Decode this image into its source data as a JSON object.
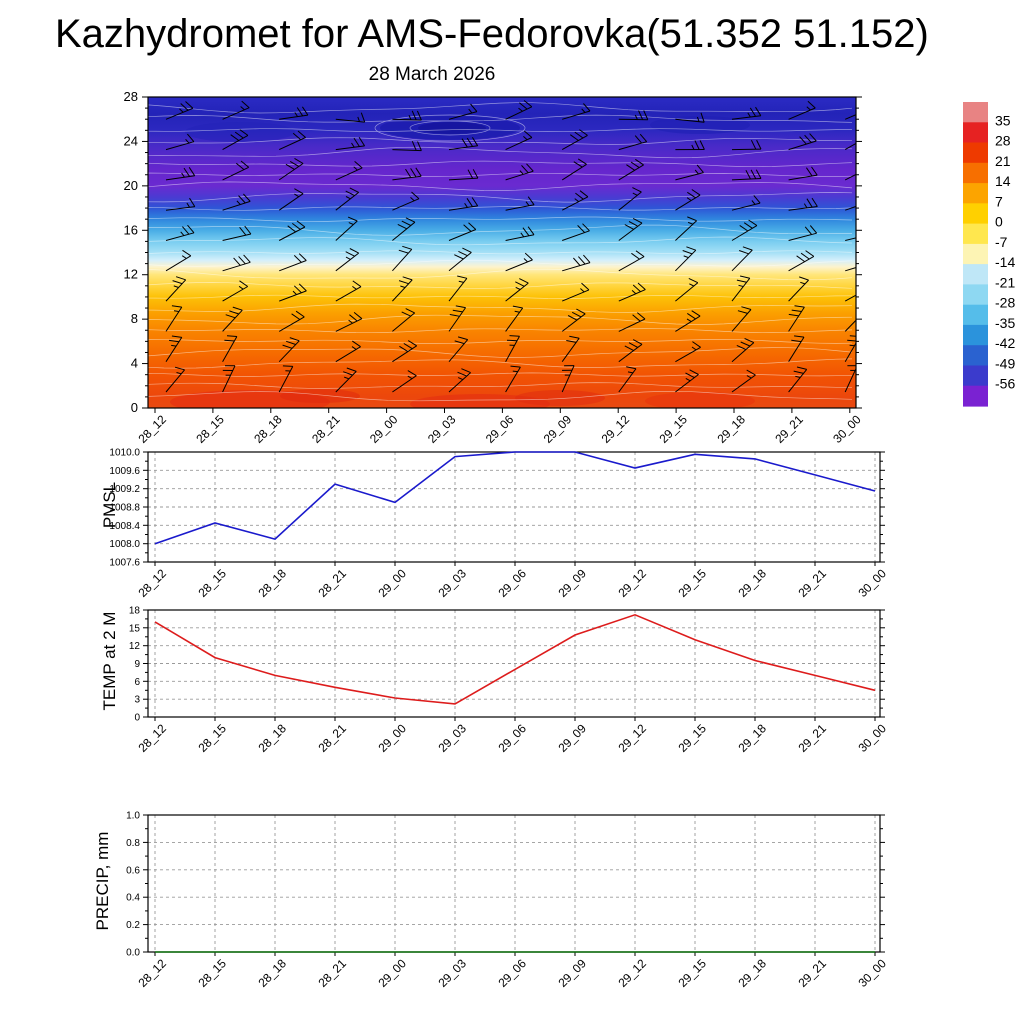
{
  "page": {
    "title": "Kazhydromet for AMS-Fedorovka(51.352 51.152)",
    "subtitle": "28 March 2026"
  },
  "time_labels": [
    "28_12",
    "28_15",
    "28_18",
    "28_21",
    "29_00",
    "29_03",
    "29_06",
    "29_09",
    "29_12",
    "29_15",
    "29_18",
    "29_21",
    "30_00"
  ],
  "chart_data": [
    {
      "id": "upper-air",
      "type": "heatmap",
      "title": "28 March 2026",
      "description": "time-height temperature cross-section with wind barbs",
      "xlabel": "",
      "ylabel": "",
      "ylim": [
        0,
        28
      ],
      "y_ticks": [
        0,
        4,
        8,
        12,
        16,
        20,
        24,
        28
      ],
      "overlay": "wind-barbs",
      "colorbar_ticks": [
        "35",
        "28",
        "21",
        "14",
        "7",
        "0",
        "-7",
        "-14",
        "-21",
        "-28",
        "-35",
        "-42",
        "-49",
        "-56"
      ],
      "colorbar_colors": [
        "#e88383",
        "#e62222",
        "#ee3a00",
        "#f76f00",
        "#fca400",
        "#ffd000",
        "#ffe74e",
        "#fdf4b4",
        "#bfe7f7",
        "#8ed8f2",
        "#55bdea",
        "#2b93dc",
        "#2a62d0",
        "#3b3bcc",
        "#7a22d2"
      ],
      "gradient_stops": [
        {
          "level": 28,
          "color": "#2b2bc4"
        },
        {
          "level": 26.5,
          "color": "#2323b8"
        },
        {
          "level": 25,
          "color": "#2c28c0"
        },
        {
          "level": 23.5,
          "color": "#4a2ac8"
        },
        {
          "level": 21.5,
          "color": "#6526cd"
        },
        {
          "level": 20,
          "color": "#6a2ad0"
        },
        {
          "level": 19,
          "color": "#4b3ad2"
        },
        {
          "level": 18,
          "color": "#2e55d6"
        },
        {
          "level": 17,
          "color": "#2f86de"
        },
        {
          "level": 16,
          "color": "#49ade6"
        },
        {
          "level": 15,
          "color": "#79cdf0"
        },
        {
          "level": 14,
          "color": "#a5e0f6"
        },
        {
          "level": 13.3,
          "color": "#d5effb"
        },
        {
          "level": 12.7,
          "color": "#fdf3cd"
        },
        {
          "level": 12,
          "color": "#ffe67a"
        },
        {
          "level": 11,
          "color": "#ffd53e"
        },
        {
          "level": 10,
          "color": "#fdc107"
        },
        {
          "level": 8.5,
          "color": "#fb9f00"
        },
        {
          "level": 7,
          "color": "#f98500"
        },
        {
          "level": 5,
          "color": "#f66c00"
        },
        {
          "level": 3,
          "color": "#f25403"
        },
        {
          "level": 1,
          "color": "#ec470c"
        },
        {
          "level": 0,
          "color": "#e84a12"
        }
      ]
    },
    {
      "id": "pmsl",
      "type": "line",
      "label": "PMSL",
      "color": "#1a1acc",
      "ylim": [
        1007.6,
        1010.0
      ],
      "y_ticks": [
        1007.6,
        1008.0,
        1008.4,
        1008.8,
        1009.2,
        1009.6,
        1010.0
      ],
      "y_tick_labels": [
        "1007.6",
        "1008.0",
        "1008.4",
        "1008.8",
        "1009.2",
        "1009.6",
        "1010.0"
      ],
      "values": [
        1008.0,
        1008.45,
        1008.1,
        1009.3,
        1008.9,
        1009.9,
        1010.0,
        1010.0,
        1009.65,
        1009.95,
        1009.85,
        1009.5,
        1009.15
      ]
    },
    {
      "id": "temp2m",
      "type": "line",
      "label": "TEMP at 2 M",
      "color": "#dd1c1c",
      "ylim": [
        0,
        18
      ],
      "y_ticks": [
        0,
        3,
        6,
        9,
        12,
        15,
        18
      ],
      "y_tick_labels": [
        "0",
        "3",
        "6",
        "9",
        "12",
        "15",
        "18"
      ],
      "values": [
        16,
        10,
        7,
        5,
        3.2,
        2.2,
        8,
        13.8,
        17.2,
        13,
        9.5,
        7,
        4.5
      ]
    },
    {
      "id": "precip",
      "type": "line",
      "label": "PRECIP, mm",
      "color": "#0b6e0b",
      "ylim": [
        0.0,
        1.0
      ],
      "y_ticks": [
        0.0,
        0.2,
        0.4,
        0.6,
        0.8,
        1.0
      ],
      "y_tick_labels": [
        "0.0",
        "0.2",
        "0.4",
        "0.6",
        "0.8",
        "1.0"
      ],
      "values": [
        0,
        0,
        0,
        0,
        0,
        0,
        0,
        0,
        0,
        0,
        0,
        0,
        0
      ]
    }
  ]
}
